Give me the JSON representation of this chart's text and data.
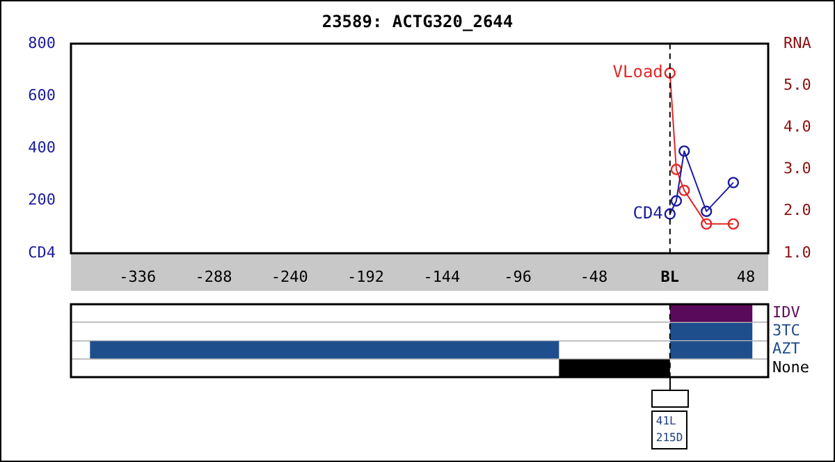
{
  "chart_data": [
    {
      "type": "line",
      "title": "23589: ACTG320_2644",
      "xlim": [
        -378,
        62
      ],
      "xticks": [
        -336,
        -288,
        -240,
        -192,
        -144,
        -96,
        -48,
        {
          "value": 0,
          "label": "BL"
        },
        48
      ],
      "ylim": [
        0,
        800
      ],
      "yticks": [
        {
          "value": 0,
          "label": "CD4"
        },
        200,
        400,
        600,
        800
      ],
      "y2lim": [
        1.0,
        6.0
      ],
      "y2ticks": [
        {
          "value": 1,
          "label": "1.0"
        },
        {
          "value": 2,
          "label": "2.0"
        },
        {
          "value": 3,
          "label": "3.0"
        },
        {
          "value": 4,
          "label": "4.0"
        },
        {
          "value": 5,
          "label": "5.0"
        },
        {
          "value": 6,
          "label": "RNA"
        }
      ],
      "marker": "circle",
      "legend": false,
      "ref_lines": [
        {
          "axis": "x",
          "value": 0,
          "color": "#000000",
          "line_style": "dashed"
        }
      ],
      "series": [
        {
          "name": "CD4",
          "color": "#1c1ca0",
          "x": [
            0,
            4,
            9,
            23,
            40
          ],
          "values": [
            150,
            200,
            390,
            160,
            270
          ]
        },
        {
          "name": "VLoad",
          "color": "#e02828",
          "axis": "y2",
          "x": [
            0,
            4,
            9,
            23,
            40
          ],
          "values": [
            5.3,
            3.0,
            2.5,
            1.7,
            1.7
          ]
        }
      ]
    },
    {
      "type": "bar",
      "orientation": "horizontal",
      "categories": [
        "IDV",
        "3TC",
        "AZT",
        "None"
      ],
      "xlim": [
        -378,
        62
      ],
      "tick_labels": "y",
      "grid": "y",
      "legend": false,
      "ref_lines": [
        {
          "axis": "x",
          "value": 0,
          "color": "#000000",
          "line_style": "dashed"
        }
      ],
      "annotations": [
        "41L\n215D"
      ],
      "series": [
        {
          "colors": [
            "#5a0a5a",
            "#1f4e8c",
            "#1f4e8c",
            "#000000"
          ],
          "base": [
            0,
            0,
            0,
            -70
          ],
          "values": [
            52,
            52,
            52,
            70
          ]
        },
        {
          "color": "#1f4e8c",
          "base": [
            null,
            null,
            -366,
            null
          ],
          "values": [
            null,
            null,
            296,
            null
          ]
        }
      ]
    }
  ]
}
